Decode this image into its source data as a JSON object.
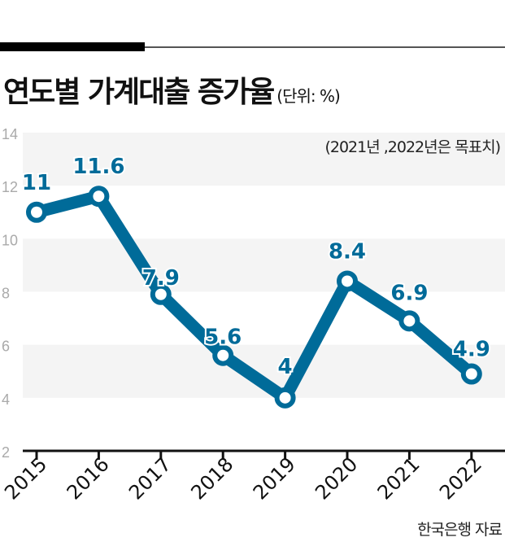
{
  "title": "연도별 가계대출 증가율",
  "unit": "(단위: %)",
  "note": "(2021년 ,2022년은 목표치)",
  "source": "한국은행 자료",
  "colors": {
    "line": "#006b99",
    "band": "#f4f4f4",
    "axis": "#111111",
    "tick_label": "#aaaaaa"
  },
  "chart_data": {
    "type": "line",
    "categories": [
      "2015",
      "2016",
      "2017",
      "2018",
      "2019",
      "2020",
      "2021",
      "2022"
    ],
    "values": [
      11,
      11.6,
      7.9,
      5.6,
      4,
      8.4,
      6.9,
      4.9
    ],
    "data_labels": [
      "11",
      "11.6",
      "7.9",
      "5.6",
      "4",
      "8.4",
      "6.9",
      "4.9"
    ],
    "yticks": [
      "2",
      "4",
      "6",
      "8",
      "10",
      "12",
      "14"
    ],
    "ylim": [
      2,
      14
    ],
    "title": "연도별 가계대출 증가율",
    "xlabel": "",
    "ylabel": "",
    "grid": "alternating horizontal bands"
  }
}
